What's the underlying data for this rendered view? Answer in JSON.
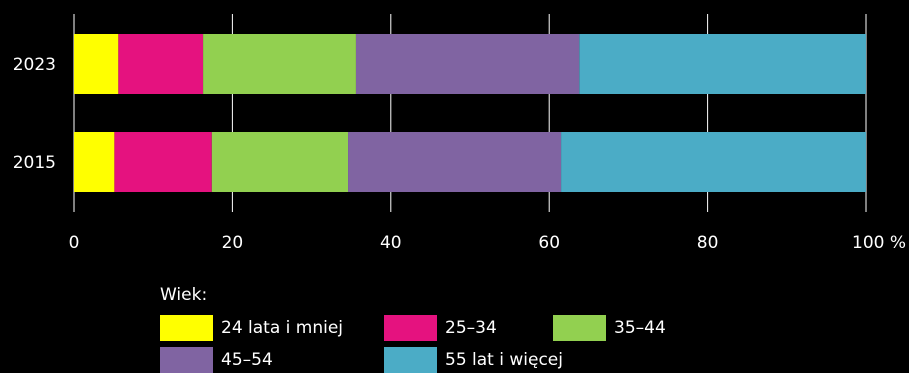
{
  "chart_data": {
    "type": "bar",
    "orientation": "horizontal",
    "stacked": true,
    "categories": [
      "2023",
      "2015"
    ],
    "series": [
      {
        "name": "24 lata i mniej",
        "color": "#ffff00",
        "values": [
          5.6,
          5.1
        ]
      },
      {
        "name": "25–34",
        "color": "#e5127f",
        "values": [
          10.7,
          12.3
        ]
      },
      {
        "name": "35–44",
        "color": "#92d050",
        "values": [
          19.3,
          17.2
        ]
      },
      {
        "name": "45–54",
        "color": "#8064a2",
        "values": [
          28.2,
          26.9
        ]
      },
      {
        "name": "55 lat i więcej",
        "color": "#4bacc6",
        "values": [
          36.2,
          38.5
        ]
      }
    ],
    "x_ticks": [
      "0",
      "20",
      "40",
      "60",
      "80",
      "100 %"
    ],
    "xlim": [
      0,
      100
    ],
    "grid": true,
    "legend_title": "Wiek:",
    "legend_position": "bottom"
  }
}
